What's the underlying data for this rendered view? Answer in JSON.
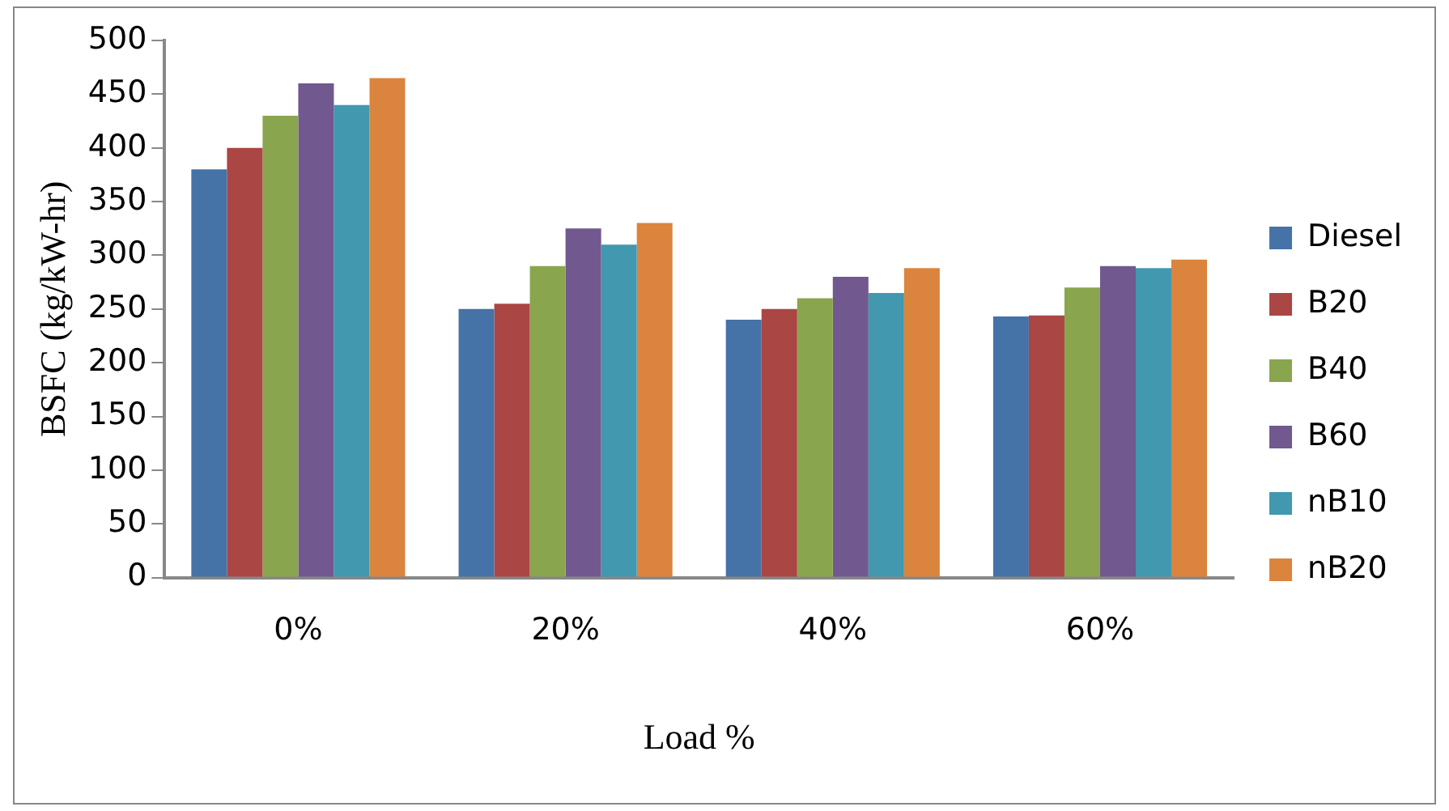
{
  "chart_data": {
    "type": "bar",
    "xlabel": "Load %",
    "ylabel": "BSFC (kg/kW-hr)",
    "categories": [
      "0%",
      "20%",
      "40%",
      "60%"
    ],
    "series": [
      {
        "name": "Diesel",
        "color": "#4572a7",
        "values": [
          380,
          250,
          240,
          243
        ]
      },
      {
        "name": "B20",
        "color": "#aa4643",
        "values": [
          400,
          255,
          250,
          244
        ]
      },
      {
        "name": "B40",
        "color": "#89a54e",
        "values": [
          430,
          290,
          260,
          270
        ]
      },
      {
        "name": "B60",
        "color": "#71588f",
        "values": [
          460,
          325,
          280,
          290
        ]
      },
      {
        "name": "nB10",
        "color": "#4198af",
        "values": [
          440,
          310,
          265,
          288
        ]
      },
      {
        "name": "nB20",
        "color": "#db843d",
        "values": [
          465,
          330,
          288,
          296
        ]
      }
    ],
    "ylim": [
      0,
      500
    ],
    "yticks": [
      0,
      50,
      100,
      150,
      200,
      250,
      300,
      350,
      400,
      450,
      500
    ],
    "grid": false,
    "legend": "right"
  }
}
